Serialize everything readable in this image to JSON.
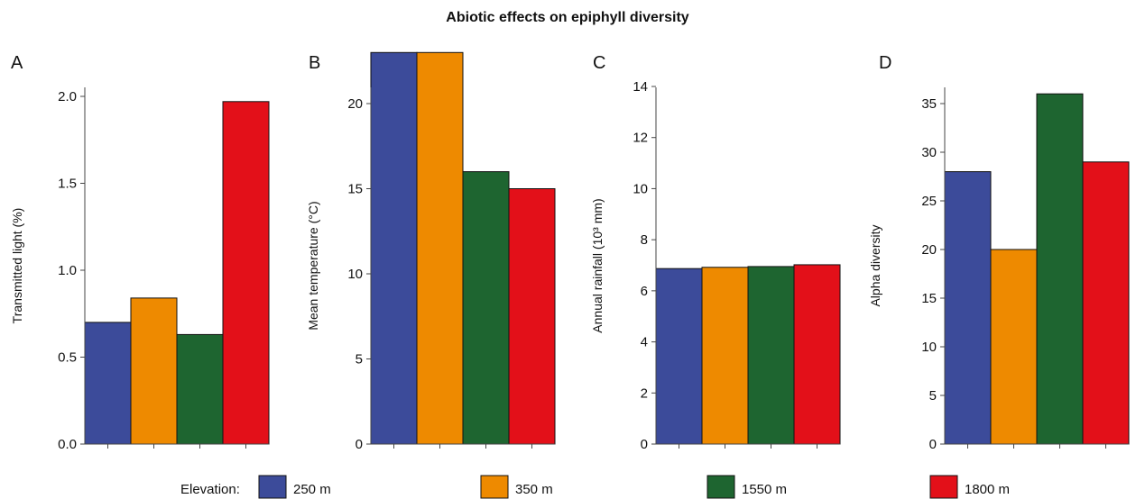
{
  "figure": {
    "title": "Abiotic effects on epiphyll diversity",
    "legend_label": "Elevation:"
  },
  "legend": [
    {
      "label": "250 m",
      "color": "#3c4b9a"
    },
    {
      "label": "350 m",
      "color": "#ee8a00"
    },
    {
      "label": "1550 m",
      "color": "#1e6530"
    },
    {
      "label": "1800 m",
      "color": "#e31019"
    }
  ],
  "chart_data": [
    {
      "type": "bar",
      "panel": "A",
      "ylabel": "Transmitted light (%)",
      "categories": [
        "250 m",
        "350 m",
        "1550 m",
        "1800 m"
      ],
      "values": [
        0.7,
        0.84,
        0.63,
        1.97
      ],
      "ylim": [
        0,
        2.0
      ],
      "yticks": [
        0.0,
        0.5,
        1.0,
        1.5,
        2.0
      ],
      "ytick_labels": [
        "0.0",
        "0.5",
        "1.0",
        "1.5",
        "2.0"
      ],
      "grid": false
    },
    {
      "type": "bar",
      "panel": "B",
      "ylabel": "Mean temperature  (°C)",
      "categories": [
        "250 m",
        "350 m",
        "1550 m",
        "1800 m"
      ],
      "values": [
        23,
        23,
        16,
        15
      ],
      "ylim": [
        0,
        23.5
      ],
      "yticks": [
        0,
        5,
        10,
        15,
        20
      ],
      "ytick_labels": [
        "0",
        "5",
        "10",
        "15",
        "20"
      ],
      "grid": false
    },
    {
      "type": "bar",
      "panel": "C",
      "ylabel": "Annual rainfall (10³ mm)",
      "categories": [
        "250 m",
        "350 m",
        "1550 m",
        "1800 m"
      ],
      "values": [
        6.87,
        6.92,
        6.95,
        7.02
      ],
      "ylim": [
        0,
        15
      ],
      "yticks": [
        0,
        2,
        4,
        6,
        8,
        10,
        12,
        14
      ],
      "ytick_labels": [
        "0",
        "2",
        "4",
        "6",
        "8",
        "10",
        "12",
        "14"
      ],
      "grid": false
    },
    {
      "type": "bar",
      "panel": "D",
      "ylabel": "Alpha diversity",
      "categories": [
        "250 m",
        "350 m",
        "1550 m",
        "1800 m"
      ],
      "values": [
        28,
        20,
        36,
        29
      ],
      "ylim": [
        0,
        37
      ],
      "yticks": [
        0,
        5,
        10,
        15,
        20,
        25,
        30,
        35
      ],
      "ytick_labels": [
        "0",
        "5",
        "10",
        "15",
        "20",
        "25",
        "30",
        "35"
      ],
      "grid": false
    }
  ]
}
